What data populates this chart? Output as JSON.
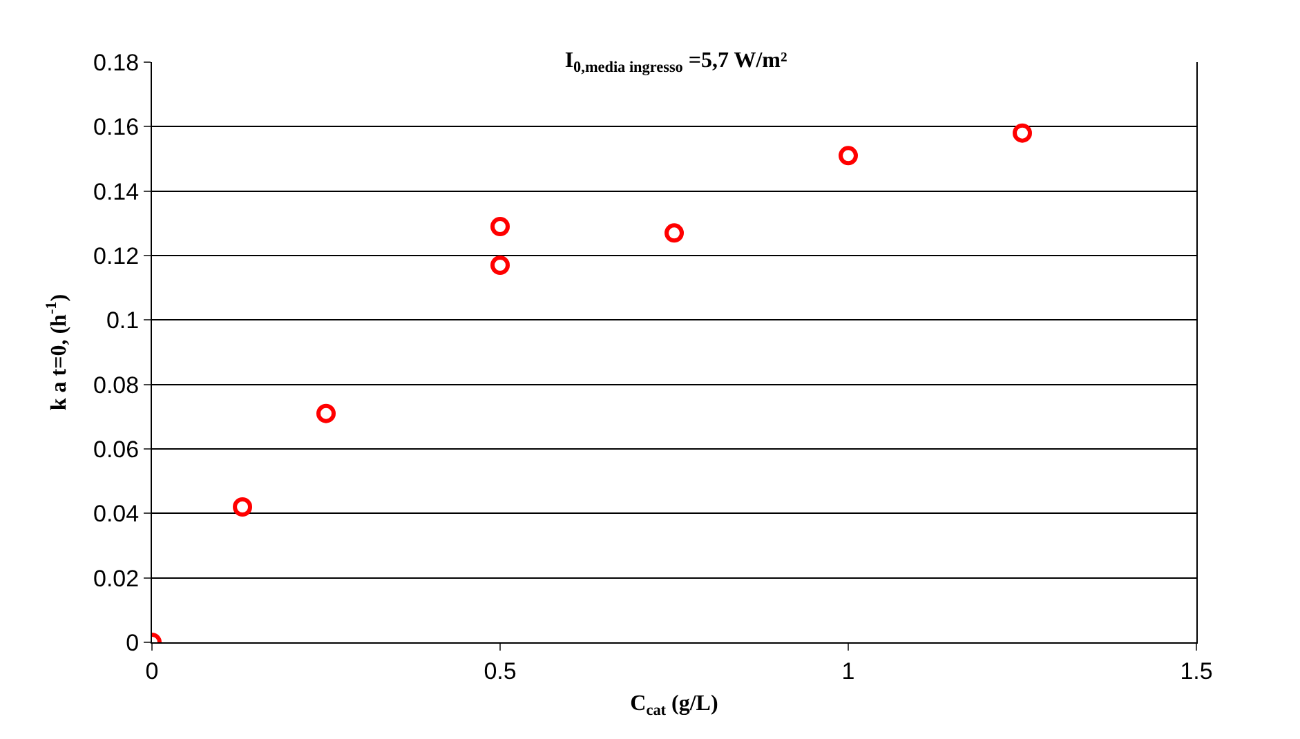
{
  "chart_data": {
    "type": "scatter",
    "title": "I$_{0,media ingresso}$ =5,7 W/m²",
    "xlabel": "C$_{cat}$ (g/L)",
    "ylabel": "k a t=0, (h$^{-1}$)",
    "x": [
      0,
      0.13,
      0.25,
      0.5,
      0.5,
      0.75,
      1.0,
      1.25
    ],
    "series": [
      {
        "color": "#ff0000",
        "values": [
          0,
          0.042,
          0.071,
          0.129,
          0.117,
          0.127,
          0.151,
          0.158
        ]
      }
    ],
    "xlim": [
      0,
      1.5
    ],
    "xticks": [
      0,
      0.5,
      1,
      1.5
    ],
    "ylim": [
      0,
      0.18
    ],
    "yticks": [
      0,
      0.02,
      0.04,
      0.06,
      0.08,
      0.1,
      0.12,
      0.14,
      0.16,
      0.18
    ],
    "grid": "y",
    "marker": "circle",
    "legend": false
  }
}
